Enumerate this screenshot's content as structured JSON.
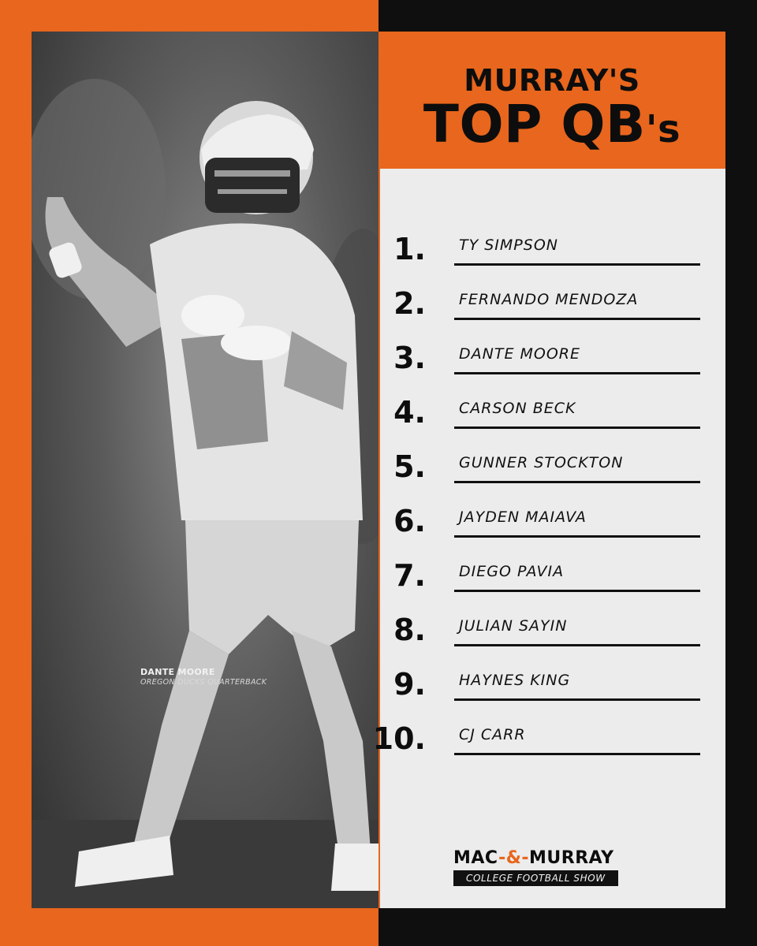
{
  "title": {
    "line1": "MURRAY'S",
    "line2_main": "TOP QB",
    "line2_suffix": "'s"
  },
  "photo": {
    "player_name": "DANTE MOORE",
    "player_role": "OREGON DUCKS QUARTERBACK"
  },
  "rankings": [
    {
      "rank": "1.",
      "name": "TY SIMPSON"
    },
    {
      "rank": "2.",
      "name": "FERNANDO MENDOZA"
    },
    {
      "rank": "3.",
      "name": "DANTE MOORE"
    },
    {
      "rank": "4.",
      "name": "CARSON BECK"
    },
    {
      "rank": "5.",
      "name": "GUNNER STOCKTON"
    },
    {
      "rank": "6.",
      "name": "JAYDEN MAIAVA"
    },
    {
      "rank": "7.",
      "name": "DIEGO PAVIA"
    },
    {
      "rank": "8.",
      "name": "JULIAN SAYIN"
    },
    {
      "rank": "9.",
      "name": "HAYNES KING"
    },
    {
      "rank": "10.",
      "name": "CJ CARR"
    }
  ],
  "logo": {
    "word1": "MAC",
    "amp": "-&-",
    "word2": "MURRAY",
    "subtitle": "COLLEGE FOOTBALL SHOW"
  },
  "colors": {
    "accent": "#e8661d",
    "dark": "#0f0f0f",
    "panel": "#ececec"
  }
}
